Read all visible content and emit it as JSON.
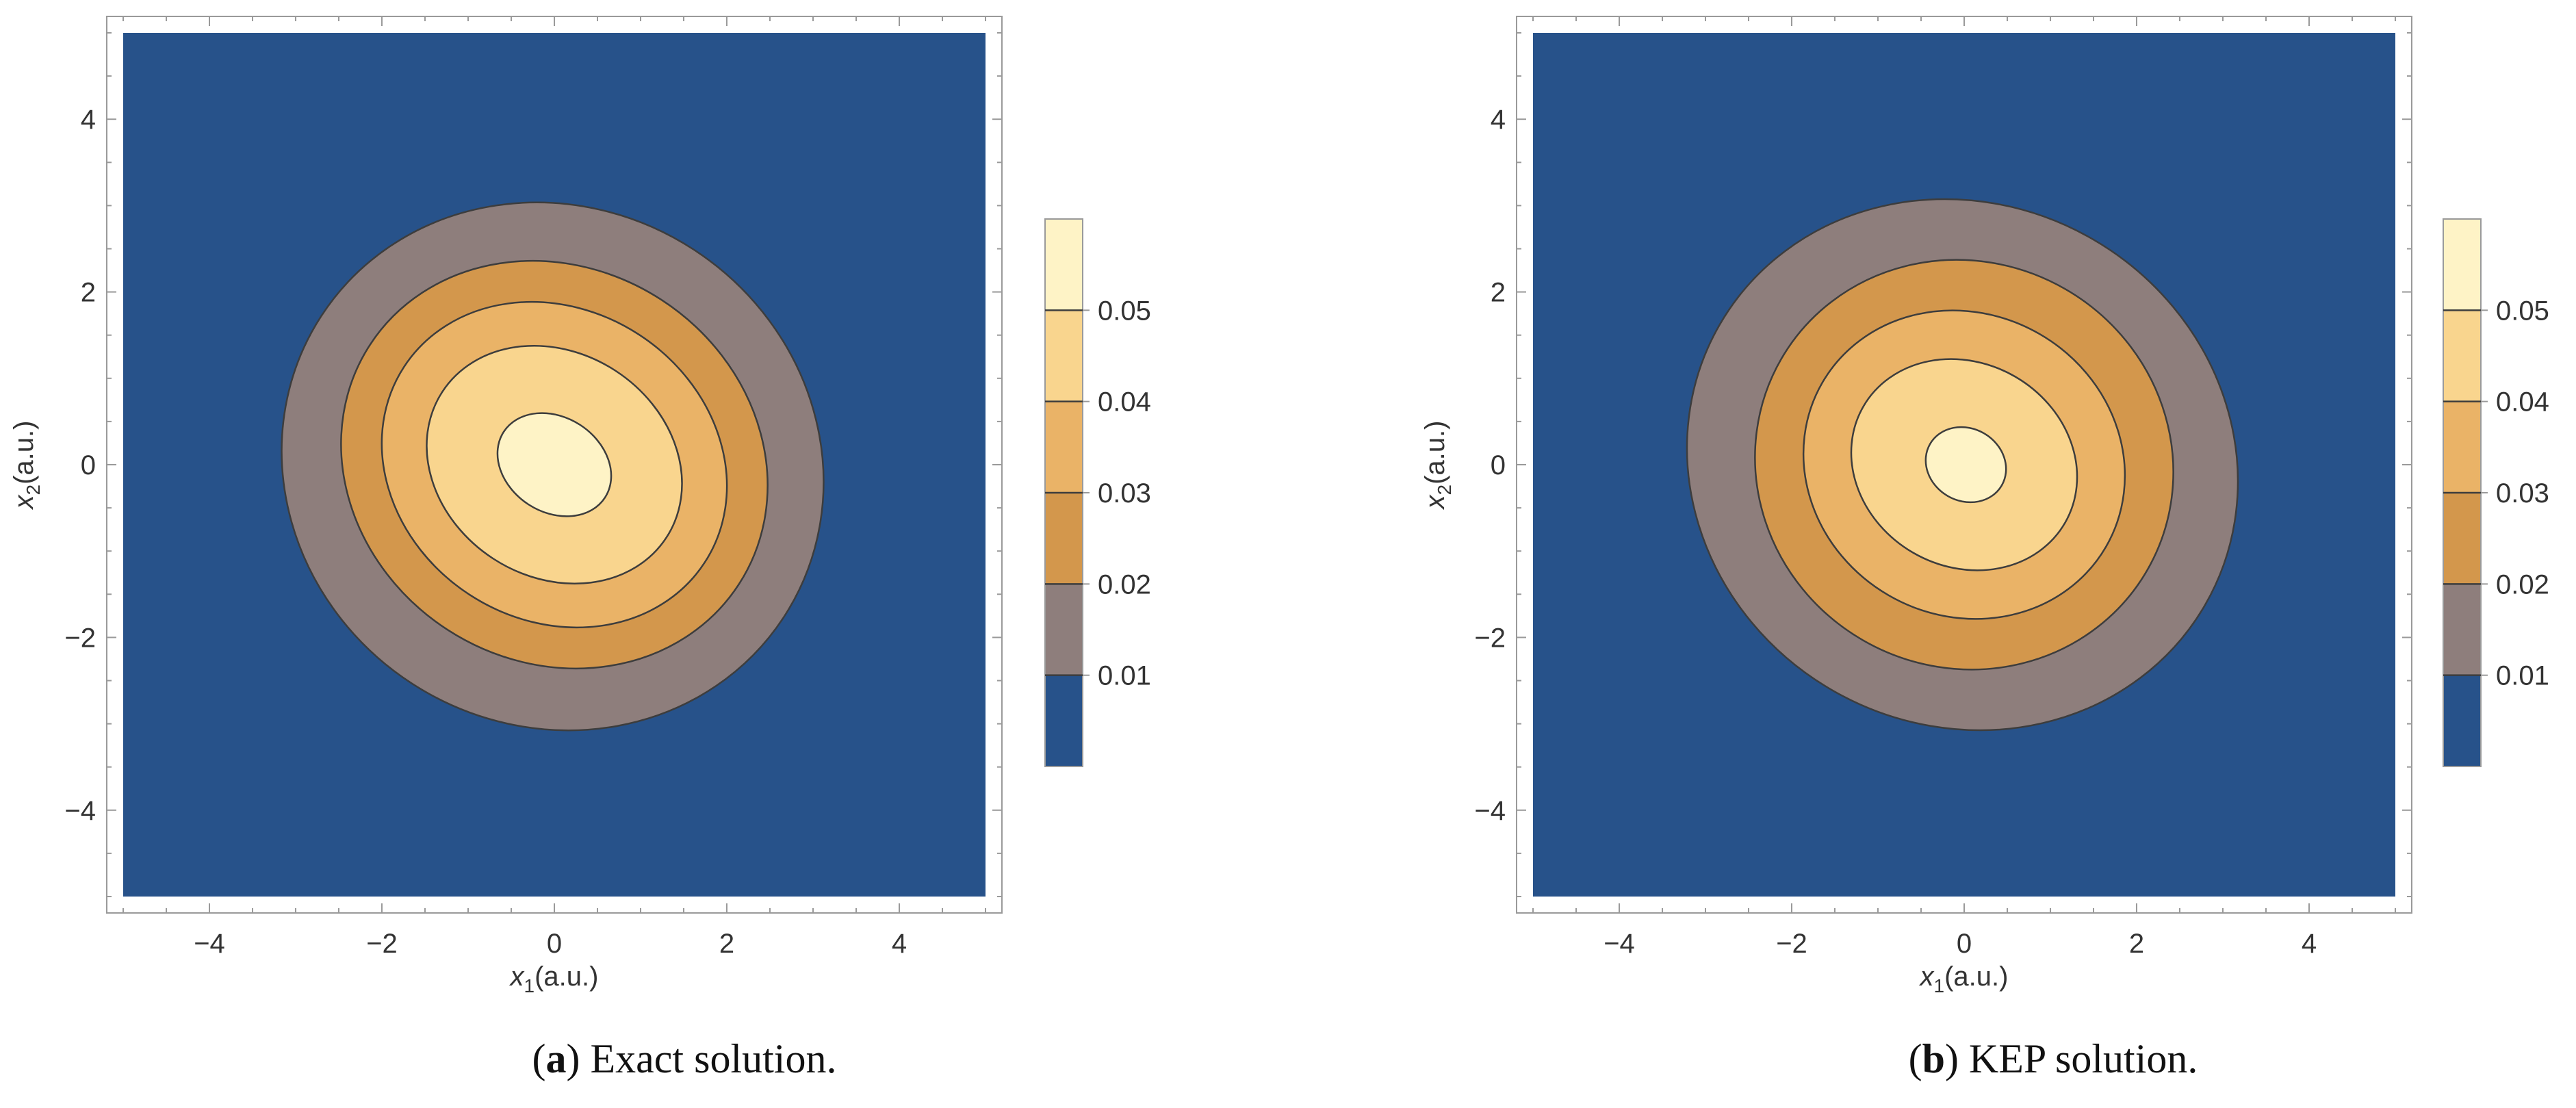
{
  "chart_data": [
    {
      "type": "contour",
      "caption_label": "a",
      "caption_text": ") Exact solution.",
      "xlabel_var": "x",
      "xlabel_sub": "1",
      "xlabel_unit": "(a.u.)",
      "ylabel_var": "x",
      "ylabel_sub": "2",
      "ylabel_unit": "(a.u.)",
      "xlim": [
        -5,
        5
      ],
      "ylim": [
        -5,
        5
      ],
      "x_ticks": [
        "−4",
        "−2",
        "0",
        "2",
        "4"
      ],
      "y_ticks": [
        "−4",
        "−2",
        "0",
        "2",
        "4"
      ],
      "x_tick_values": [
        -4,
        -2,
        0,
        2,
        4
      ],
      "y_tick_values": [
        -4,
        -2,
        0,
        2,
        4
      ],
      "contour_levels": [
        0.01,
        0.02,
        0.03,
        0.04,
        0.05
      ],
      "colorbar_labels": [
        "0.01",
        "0.02",
        "0.03",
        "0.04",
        "0.05"
      ],
      "colorbar_range": [
        0,
        0.06
      ],
      "fill_colors": [
        "#27528a",
        "#8e7e7c",
        "#d3974c",
        "#eab367",
        "#f9d58e",
        "#fef3c6"
      ],
      "contours": [
        {
          "level": 0.01,
          "cx": -0.02,
          "cy": -0.02,
          "rx": 3.2,
          "ry": 3.0,
          "rot": 33
        },
        {
          "level": 0.02,
          "cx": 0.0,
          "cy": 0.0,
          "rx": 2.55,
          "ry": 2.28,
          "rot": 33
        },
        {
          "level": 0.03,
          "cx": 0.0,
          "cy": 0.0,
          "rx": 2.08,
          "ry": 1.8,
          "rot": 33
        },
        {
          "level": 0.04,
          "cx": 0.0,
          "cy": 0.0,
          "rx": 1.55,
          "ry": 1.3,
          "rot": 33
        },
        {
          "level": 0.05,
          "cx": 0.0,
          "cy": 0.0,
          "rx": 0.7,
          "ry": 0.55,
          "rot": 33
        }
      ]
    },
    {
      "type": "contour",
      "caption_label": "b",
      "caption_text": ") KEP solution.",
      "xlabel_var": "x",
      "xlabel_sub": "1",
      "xlabel_unit": "(a.u.)",
      "ylabel_var": "x",
      "ylabel_sub": "2",
      "ylabel_unit": "(a.u.)",
      "xlim": [
        -5,
        5
      ],
      "ylim": [
        -5,
        5
      ],
      "x_ticks": [
        "−4",
        "−2",
        "0",
        "2",
        "4"
      ],
      "y_ticks": [
        "−4",
        "−2",
        "0",
        "2",
        "4"
      ],
      "x_tick_values": [
        -4,
        -2,
        0,
        2,
        4
      ],
      "y_tick_values": [
        -4,
        -2,
        0,
        2,
        4
      ],
      "contour_levels": [
        0.01,
        0.02,
        0.03,
        0.04,
        0.05
      ],
      "colorbar_labels": [
        "0.01",
        "0.02",
        "0.03",
        "0.04",
        "0.05"
      ],
      "colorbar_range": [
        0,
        0.06
      ],
      "fill_colors": [
        "#27528a",
        "#8e7e7c",
        "#d3974c",
        "#eab367",
        "#f9d58e",
        "#fef3c6"
      ],
      "contours": [
        {
          "level": 0.01,
          "cx": -0.02,
          "cy": 0.0,
          "rx": 3.25,
          "ry": 3.02,
          "rot": 30
        },
        {
          "level": 0.02,
          "cx": 0.0,
          "cy": 0.0,
          "rx": 2.45,
          "ry": 2.35,
          "rot": 30
        },
        {
          "level": 0.03,
          "cx": 0.0,
          "cy": 0.0,
          "rx": 1.9,
          "ry": 1.75,
          "rot": 30
        },
        {
          "level": 0.04,
          "cx": 0.0,
          "cy": 0.0,
          "rx": 1.35,
          "ry": 1.18,
          "rot": 30
        },
        {
          "level": 0.05,
          "cx": 0.02,
          "cy": 0.0,
          "rx": 0.48,
          "ry": 0.42,
          "rot": 30
        }
      ]
    }
  ]
}
